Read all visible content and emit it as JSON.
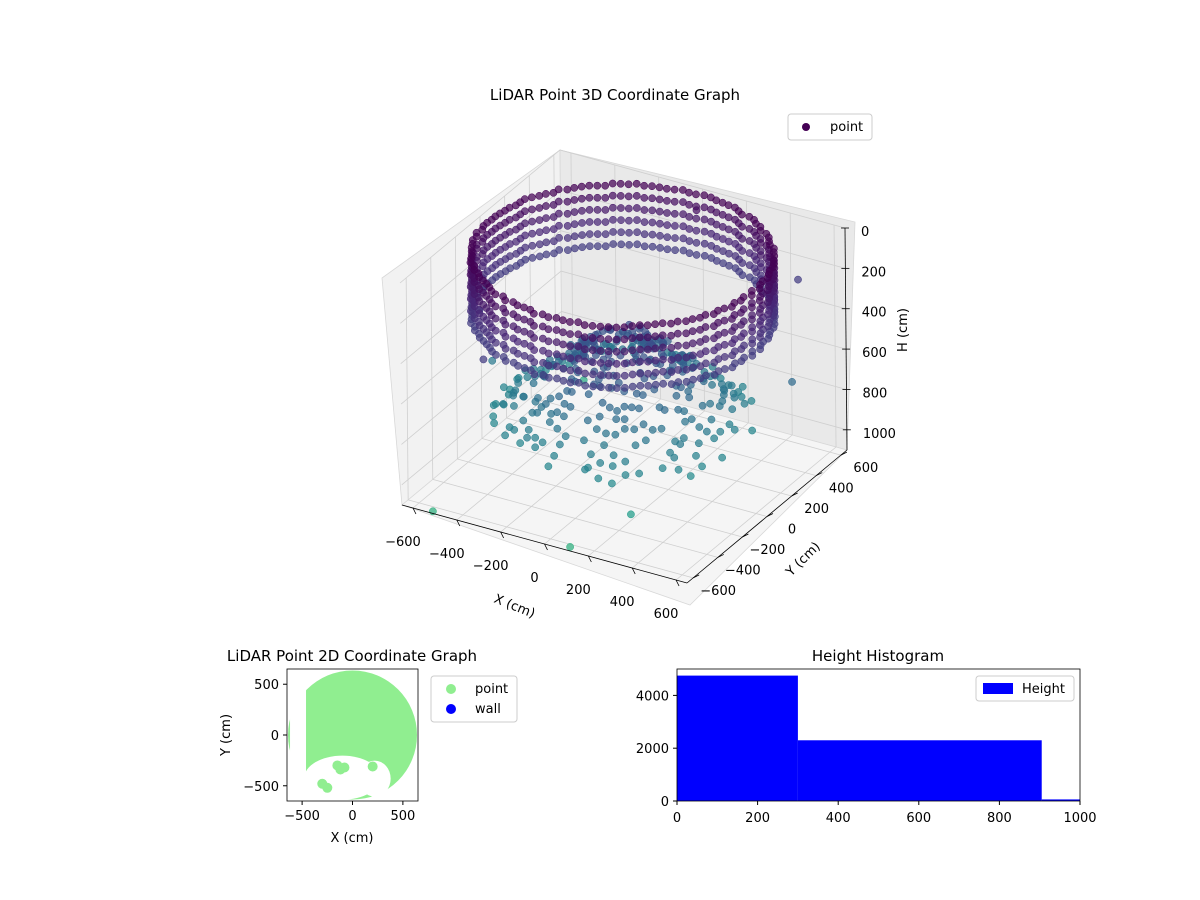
{
  "chart_data": [
    {
      "type": "scatter3d",
      "title": "LiDAR Point 3D Coordinate Graph",
      "xlabel": "X (cm)",
      "ylabel": "Y (cm)",
      "zlabel": "H (cm)",
      "xlim": [
        -650,
        650
      ],
      "ylim": [
        -650,
        650
      ],
      "zlim": [
        1100,
        0
      ],
      "x_ticks": [
        -600,
        -400,
        -200,
        0,
        200,
        400,
        600
      ],
      "y_ticks": [
        -600,
        -400,
        -200,
        0,
        200,
        400,
        600
      ],
      "z_ticks": [
        0,
        200,
        400,
        600,
        800,
        1000
      ],
      "legend": {
        "position": "top-right",
        "entries": [
          {
            "name": "point",
            "color": "#440154"
          }
        ]
      },
      "colormap": "viridis",
      "series": [
        {
          "name": "point",
          "description": "ring of wall points at ~600 cm radius between H 0 and 300, floor points below",
          "points": [
            [
              -560,
              -560,
              1150
            ],
            [
              -500,
              560,
              1050
            ],
            [
              -600,
              0,
              700
            ],
            [
              -600,
              -100,
              400
            ],
            [
              100,
              -620,
              1100
            ],
            [
              300,
              -480,
              950
            ],
            [
              600,
              300,
              600
            ],
            [
              450,
              620,
              300
            ],
            [
              -300,
              -600,
              300
            ],
            [
              0,
              600,
              80
            ]
          ]
        }
      ]
    },
    {
      "type": "scatter",
      "title": "LiDAR Point 2D Coordinate Graph",
      "xlabel": "X (cm)",
      "ylabel": "Y (cm)",
      "xlim": [
        -650,
        650
      ],
      "ylim": [
        -650,
        650
      ],
      "x_ticks": [
        -500,
        0,
        500
      ],
      "y_ticks": [
        -500,
        0,
        500
      ],
      "legend": {
        "position": "right",
        "entries": [
          {
            "name": "point",
            "color": "#90ee90"
          },
          {
            "name": "wall",
            "color": "#0000ff"
          }
        ]
      },
      "series": [
        {
          "name": "point",
          "color": "#90ee90",
          "description": "dense filled disk of points, radius ~640 cm, with a gap region near the bottom"
        },
        {
          "name": "wall",
          "color": "#0000ff",
          "points": []
        }
      ]
    },
    {
      "type": "bar",
      "title": "Height Histogram",
      "xlabel": "",
      "ylabel": "",
      "xlim": [
        0,
        1000
      ],
      "ylim": [
        0,
        5000
      ],
      "x_ticks": [
        0,
        200,
        400,
        600,
        800,
        1000
      ],
      "y_ticks": [
        0,
        2000,
        4000
      ],
      "legend": {
        "position": "top-right",
        "entries": [
          {
            "name": "Height",
            "color": "#0000ff"
          }
        ]
      },
      "bins": [
        {
          "start": 0,
          "end": 300,
          "count": 4750
        },
        {
          "start": 300,
          "end": 905,
          "count": 2300
        },
        {
          "start": 905,
          "end": 1000,
          "count": 60
        }
      ]
    }
  ]
}
